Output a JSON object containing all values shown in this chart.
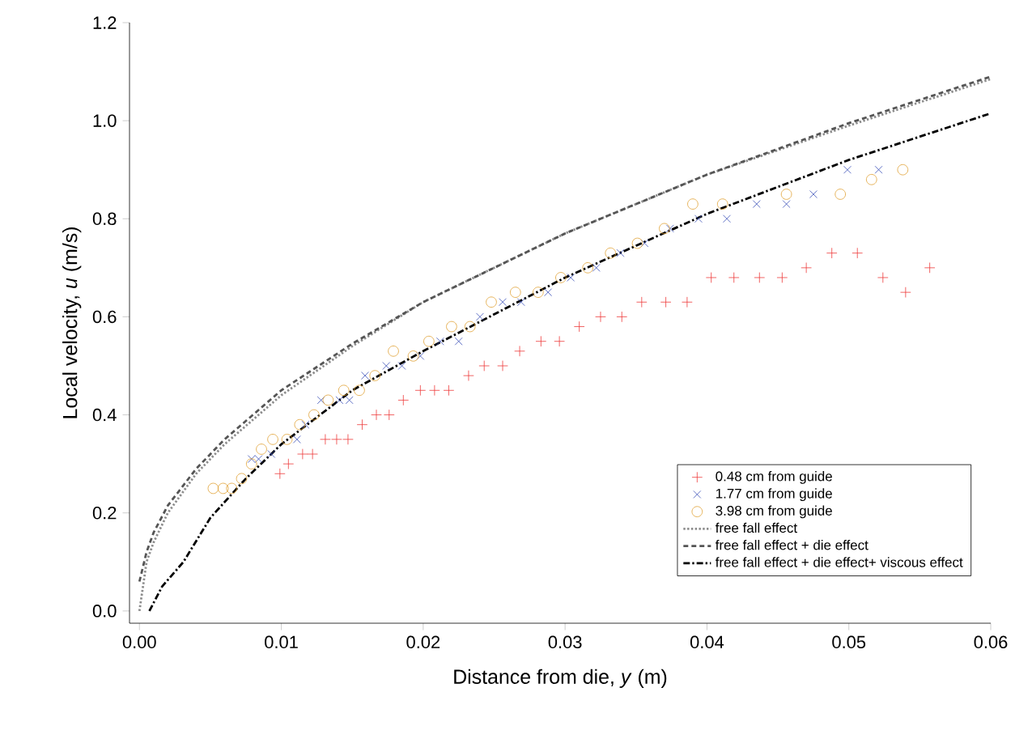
{
  "chart_data": {
    "type": "scatter",
    "xlabel": "Distance from die, *y* (m)",
    "ylabel": "Local velocity, *u* (m/s)",
    "xlim": [
      -0.0007,
      0.06
    ],
    "ylim": [
      -0.025,
      1.2
    ],
    "xticks": [
      {
        "value": 0,
        "label": "0.00"
      },
      {
        "value": 0.01,
        "label": "0.01"
      },
      {
        "value": 0.02,
        "label": "0.02"
      },
      {
        "value": 0.03,
        "label": "0.03"
      },
      {
        "value": 0.04,
        "label": "0.04"
      },
      {
        "value": 0.05,
        "label": "0.05"
      },
      {
        "value": 0.06,
        "label": "0.06"
      }
    ],
    "yticks": [
      {
        "value": 0,
        "label": "0.0"
      },
      {
        "value": 0.2,
        "label": "0.2"
      },
      {
        "value": 0.4,
        "label": "0.4"
      },
      {
        "value": 0.6,
        "label": "0.6"
      },
      {
        "value": 0.8,
        "label": "0.8"
      },
      {
        "value": 1.0,
        "label": "1.0"
      },
      {
        "value": 1.2,
        "label": "1.2"
      }
    ],
    "legend": "bottom right",
    "grid": false,
    "series": [
      {
        "name": "0.48 cm from guide",
        "marker": "plus",
        "color": "#ee3b3b",
        "x": [
          0.0099,
          0.0105,
          0.0115,
          0.0122,
          0.0131,
          0.0139,
          0.0147,
          0.0157,
          0.0167,
          0.0176,
          0.0186,
          0.0198,
          0.0208,
          0.0218,
          0.0232,
          0.0243,
          0.0256,
          0.0268,
          0.0283,
          0.0296,
          0.031,
          0.0325,
          0.034,
          0.0354,
          0.0371,
          0.0386,
          0.0403,
          0.0419,
          0.0437,
          0.0453,
          0.047,
          0.0488,
          0.0506,
          0.0524,
          0.054,
          0.0557
        ],
        "values": [
          0.28,
          0.3,
          0.32,
          0.32,
          0.35,
          0.35,
          0.35,
          0.38,
          0.4,
          0.4,
          0.43,
          0.45,
          0.45,
          0.45,
          0.48,
          0.5,
          0.5,
          0.53,
          0.55,
          0.55,
          0.58,
          0.6,
          0.6,
          0.63,
          0.63,
          0.63,
          0.68,
          0.68,
          0.68,
          0.68,
          0.7,
          0.73,
          0.73,
          0.68,
          0.65,
          0.7
        ]
      },
      {
        "name": "1.77 cm from guide",
        "marker": "cross",
        "color": "#3a4fb8",
        "x": [
          0.0079,
          0.0084,
          0.0093,
          0.0111,
          0.0117,
          0.0128,
          0.0141,
          0.0148,
          0.0159,
          0.0174,
          0.0185,
          0.0198,
          0.0212,
          0.0225,
          0.024,
          0.0256,
          0.0269,
          0.0288,
          0.0304,
          0.0322,
          0.0339,
          0.0356,
          0.0374,
          0.0394,
          0.0414,
          0.0435,
          0.0456,
          0.0475,
          0.0499,
          0.0521
        ],
        "values": [
          0.31,
          0.31,
          0.32,
          0.35,
          0.38,
          0.43,
          0.43,
          0.43,
          0.48,
          0.5,
          0.5,
          0.52,
          0.55,
          0.55,
          0.6,
          0.63,
          0.63,
          0.65,
          0.68,
          0.7,
          0.73,
          0.75,
          0.78,
          0.8,
          0.8,
          0.83,
          0.83,
          0.85,
          0.9,
          0.9
        ]
      },
      {
        "name": "3.98 cm from guide",
        "marker": "circle",
        "color": "#e0a030",
        "x": [
          0.0052,
          0.0059,
          0.0065,
          0.0072,
          0.0079,
          0.0086,
          0.0094,
          0.0104,
          0.0113,
          0.0123,
          0.0133,
          0.0144,
          0.0155,
          0.0166,
          0.0179,
          0.0193,
          0.0204,
          0.022,
          0.0233,
          0.0248,
          0.0265,
          0.0281,
          0.0297,
          0.0316,
          0.0332,
          0.0351,
          0.037,
          0.039,
          0.0411,
          0.0456,
          0.0494,
          0.0516,
          0.0538
        ],
        "values": [
          0.25,
          0.25,
          0.25,
          0.27,
          0.3,
          0.33,
          0.35,
          0.35,
          0.38,
          0.4,
          0.43,
          0.45,
          0.45,
          0.48,
          0.53,
          0.52,
          0.55,
          0.58,
          0.58,
          0.63,
          0.65,
          0.65,
          0.68,
          0.7,
          0.73,
          0.75,
          0.78,
          0.83,
          0.83,
          0.85,
          0.85,
          0.88,
          0.9
        ]
      },
      {
        "name": "free fall effect",
        "type": "line",
        "line_style": "dotted",
        "color": "#8c8c8c",
        "x": [
          0,
          0.0005,
          0.001,
          0.002,
          0.004,
          0.006,
          0.01,
          0.015,
          0.02,
          0.03,
          0.04,
          0.05,
          0.06
        ],
        "values": [
          0,
          0.1,
          0.14,
          0.2,
          0.28,
          0.34,
          0.44,
          0.54,
          0.63,
          0.77,
          0.89,
          0.99,
          1.085
        ]
      },
      {
        "name": "free fall effect + die effect",
        "type": "line",
        "line_style": "dashed",
        "color": "#555555",
        "x": [
          0,
          0.0005,
          0.001,
          0.002,
          0.004,
          0.006,
          0.01,
          0.015,
          0.02,
          0.03,
          0.04,
          0.05,
          0.06
        ],
        "values": [
          0.06,
          0.12,
          0.16,
          0.215,
          0.29,
          0.35,
          0.45,
          0.545,
          0.63,
          0.77,
          0.89,
          0.995,
          1.09
        ]
      },
      {
        "name": "free fall effect + die effect+ viscous effect",
        "type": "line",
        "line_style": "dashdot",
        "color": "#000000",
        "x": [
          0.0007,
          0.0016,
          0.0031,
          0.005,
          0.0075,
          0.01,
          0.015,
          0.02,
          0.03,
          0.04,
          0.05,
          0.06
        ],
        "values": [
          0,
          0.05,
          0.1,
          0.19,
          0.27,
          0.34,
          0.45,
          0.53,
          0.68,
          0.81,
          0.92,
          1.015
        ]
      }
    ]
  }
}
